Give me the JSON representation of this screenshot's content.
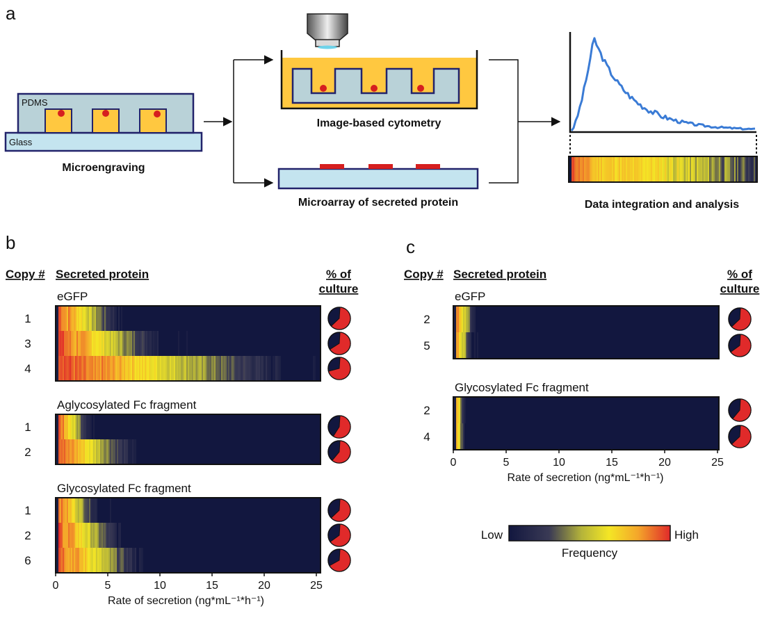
{
  "colors": {
    "navy": "#12173f",
    "red": "#e02a2a",
    "yellow": "#f4e625",
    "orange": "#f4a62a",
    "well": "#ffc840",
    "pdms": "#b9d2d8",
    "glass": "#c4e4ef",
    "line_blue": "#3a7bd5"
  },
  "panel_a": {
    "letter": "a",
    "pdms_label": "PDMS",
    "glass_label": "Glass",
    "microengraving_label": "Microengraving",
    "cytometry_label": "Image-based cytometry",
    "microarray_label": "Microarray of secreted protein",
    "analysis_label": "Data integration and analysis"
  },
  "panel_b": {
    "letter": "b",
    "copy_header": "Copy #",
    "protein_header": "Secreted protein",
    "culture_header_1": "% of",
    "culture_header_2": "culture",
    "groups": [
      {
        "name": "eGFP",
        "copies": [
          "1",
          "3",
          "4"
        ],
        "spread": [
          0.18,
          0.3,
          0.65
        ],
        "fractions": [
          0.62,
          0.65,
          0.7
        ]
      },
      {
        "name": "Aglycosylated Fc fragment",
        "copies": [
          "1",
          "2"
        ],
        "spread": [
          0.1,
          0.22
        ],
        "fractions": [
          0.58,
          0.6
        ]
      },
      {
        "name": "Glycosylated Fc fragment",
        "copies": [
          "1",
          "2",
          "6"
        ],
        "spread": [
          0.12,
          0.18,
          0.24
        ],
        "fractions": [
          0.62,
          0.64,
          0.66
        ]
      }
    ],
    "axis": {
      "ticks": [
        "0",
        "5",
        "10",
        "15",
        "20",
        "25"
      ],
      "label": "Rate of secretion (ng*mL⁻¹*h⁻¹)",
      "range": [
        0,
        25
      ]
    }
  },
  "panel_c": {
    "letter": "c",
    "copy_header": "Copy #",
    "protein_header": "Secreted protein",
    "culture_header_1": "% of",
    "culture_header_2": "culture",
    "groups": [
      {
        "name": "eGFP",
        "copies": [
          "2",
          "5"
        ],
        "spread": [
          0.06,
          0.05
        ],
        "fractions": [
          0.62,
          0.64
        ]
      },
      {
        "name": "Glycosylated Fc fragment",
        "copies": [
          "2",
          "4"
        ],
        "spread": [
          0.03,
          0.03
        ],
        "fractions": [
          0.6,
          0.62
        ]
      }
    ],
    "axis": {
      "ticks": [
        "0",
        "5",
        "10",
        "15",
        "20",
        "25"
      ],
      "label": "Rate of secretion (ng*mL⁻¹*h⁻¹)",
      "range": [
        0,
        25
      ]
    }
  },
  "legend": {
    "low": "Low",
    "high": "High",
    "title": "Frequency"
  }
}
